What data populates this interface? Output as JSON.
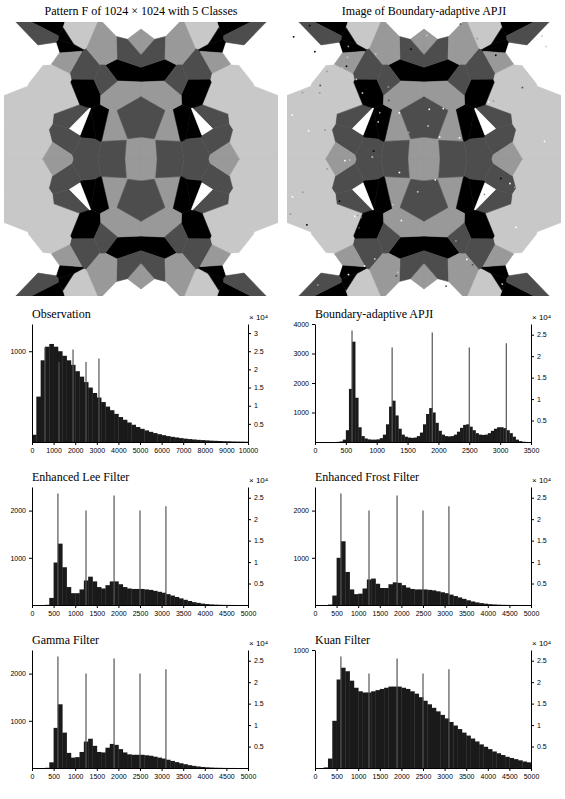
{
  "chart_data": [
    {
      "type": "image",
      "title": "Pattern F of 1024 × 1024 with 5 Classes"
    },
    {
      "type": "image",
      "title": "Image of Boundary-adaptive APJI"
    },
    {
      "type": "histogram",
      "title": "Observation",
      "color": "#1a1a1a",
      "bins": [
        0,
        200,
        400,
        600,
        800,
        1000,
        1200,
        1400,
        1600,
        1800,
        2000,
        2200,
        2400,
        2600,
        2800,
        3000,
        3200,
        3400,
        3600,
        3800,
        4000,
        4200,
        4400,
        4600,
        4800,
        5000,
        5200,
        5400,
        5600,
        5800,
        6000,
        6200,
        6400,
        6600,
        6800,
        7000,
        7200,
        7400,
        7600,
        7800,
        8000,
        8200,
        8400,
        8600,
        8800,
        9000,
        9200,
        9400,
        9600,
        9800,
        10000
      ],
      "counts": [
        80,
        500,
        900,
        1050,
        1080,
        1050,
        1000,
        950,
        900,
        850,
        780,
        720,
        660,
        600,
        540,
        490,
        440,
        390,
        350,
        310,
        275,
        245,
        215,
        190,
        165,
        145,
        128,
        112,
        98,
        86,
        75,
        65,
        57,
        50,
        43,
        37,
        32,
        28,
        24,
        21,
        18,
        15,
        13,
        11,
        9,
        8,
        6,
        5,
        4,
        3
      ],
      "xlim": [
        0,
        10000
      ],
      "xticks": [
        0,
        1000,
        2000,
        3000,
        4000,
        5000,
        6000,
        7000,
        8000,
        9000,
        10000
      ],
      "ylim": [
        0,
        1300
      ],
      "yticks": [
        1000
      ],
      "y2lim": [
        0,
        3.25
      ],
      "y2ticks": [
        0.5,
        1,
        1.5,
        2,
        2.5,
        3
      ],
      "y2_label": "× 10⁴",
      "series": [
        {
          "type": "stem",
          "axis": "y2",
          "color": "#555555",
          "x": [
            600,
            1250,
            1900,
            2500,
            3100
          ],
          "values": [
            2.6,
            2.2,
            2.55,
            2.2,
            2.3
          ]
        }
      ]
    },
    {
      "type": "histogram",
      "title": "Boundary-adaptive APJI",
      "color": "#1a1a1a",
      "bins": [
        0,
        50,
        100,
        150,
        200,
        250,
        300,
        350,
        400,
        450,
        500,
        550,
        600,
        650,
        700,
        750,
        800,
        850,
        900,
        950,
        1000,
        1050,
        1100,
        1150,
        1200,
        1250,
        1300,
        1350,
        1400,
        1450,
        1500,
        1550,
        1600,
        1650,
        1700,
        1750,
        1800,
        1850,
        1900,
        1950,
        2000,
        2050,
        2100,
        2150,
        2200,
        2250,
        2300,
        2350,
        2400,
        2450,
        2500,
        2550,
        2600,
        2650,
        2700,
        2750,
        2800,
        2850,
        2900,
        2950,
        3000,
        3050,
        3100,
        3150,
        3200,
        3250,
        3300,
        3350,
        3400,
        3450,
        3500
      ],
      "counts": [
        0,
        0,
        0,
        0,
        0,
        0,
        0,
        5,
        20,
        80,
        400,
        1800,
        3400,
        1500,
        500,
        200,
        120,
        90,
        80,
        80,
        90,
        130,
        250,
        600,
        1200,
        1400,
        900,
        450,
        250,
        180,
        150,
        140,
        150,
        200,
        320,
        600,
        950,
        1150,
        1000,
        650,
        380,
        250,
        200,
        190,
        200,
        250,
        350,
        480,
        580,
        600,
        520,
        400,
        300,
        250,
        240,
        250,
        300,
        380,
        450,
        500,
        500,
        470,
        400,
        300,
        180,
        80,
        30,
        10,
        3,
        0
      ],
      "xlim": [
        0,
        3500
      ],
      "xticks": [
        0,
        500,
        1000,
        1500,
        2000,
        2500,
        3000,
        3500
      ],
      "ylim": [
        0,
        4000
      ],
      "yticks": [
        1000,
        2000,
        3000,
        4000
      ],
      "y2lim": [
        0,
        2.75
      ],
      "y2ticks": [
        0.5,
        1,
        1.5,
        2,
        2.5
      ],
      "y2_label": "× 10⁴",
      "series": [
        {
          "type": "stem",
          "axis": "y2",
          "color": "#555555",
          "x": [
            600,
            1250,
            1900,
            2500,
            3100
          ],
          "values": [
            2.6,
            2.2,
            2.55,
            2.2,
            2.3
          ]
        }
      ]
    },
    {
      "type": "histogram",
      "title": "Enhanced Lee Filter",
      "color": "#1a1a1a",
      "bins": [
        0,
        100,
        200,
        300,
        400,
        500,
        600,
        700,
        800,
        900,
        1000,
        1100,
        1200,
        1300,
        1400,
        1500,
        1600,
        1700,
        1800,
        1900,
        2000,
        2100,
        2200,
        2300,
        2400,
        2500,
        2600,
        2700,
        2800,
        2900,
        3000,
        3100,
        3200,
        3300,
        3400,
        3500,
        3600,
        3700,
        3800,
        3900,
        4000,
        4100,
        4200,
        4300,
        4400,
        4500,
        4600,
        4700,
        4800,
        4900,
        5000
      ],
      "counts": [
        0,
        0,
        0,
        5,
        150,
        900,
        1300,
        800,
        380,
        250,
        250,
        330,
        520,
        600,
        500,
        380,
        350,
        420,
        500,
        500,
        440,
        380,
        350,
        340,
        340,
        340,
        330,
        320,
        300,
        280,
        260,
        230,
        200,
        170,
        140,
        110,
        85,
        60,
        45,
        30,
        20,
        13,
        8,
        5,
        3,
        2,
        1,
        0,
        0,
        0
      ],
      "xlim": [
        0,
        5000
      ],
      "xticks": [
        0,
        500,
        1000,
        1500,
        2000,
        2500,
        3000,
        3500,
        4000,
        4500,
        5000
      ],
      "ylim": [
        0,
        2500
      ],
      "yticks": [
        1000,
        2000
      ],
      "y2lim": [
        0,
        2.75
      ],
      "y2ticks": [
        0.5,
        1,
        1.5,
        2,
        2.5
      ],
      "y2_label": "× 10⁴",
      "series": [
        {
          "type": "stem",
          "axis": "y2",
          "color": "#555555",
          "x": [
            600,
            1250,
            1900,
            2500,
            3100
          ],
          "values": [
            2.6,
            2.2,
            2.55,
            2.2,
            2.3
          ]
        }
      ]
    },
    {
      "type": "histogram",
      "title": "Enhanced Frost Filter",
      "color": "#1a1a1a",
      "bins": [
        0,
        100,
        200,
        300,
        400,
        500,
        600,
        700,
        800,
        900,
        1000,
        1100,
        1200,
        1300,
        1400,
        1500,
        1600,
        1700,
        1800,
        1900,
        2000,
        2100,
        2200,
        2300,
        2400,
        2500,
        2600,
        2700,
        2800,
        2900,
        3000,
        3100,
        3200,
        3300,
        3400,
        3500,
        3600,
        3700,
        3800,
        3900,
        4000,
        4100,
        4200,
        4300,
        4400,
        4500,
        4600,
        4700,
        4800,
        4900,
        5000
      ],
      "counts": [
        0,
        0,
        0,
        10,
        200,
        1000,
        1350,
        700,
        330,
        230,
        240,
        350,
        540,
        560,
        450,
        360,
        360,
        440,
        480,
        470,
        420,
        370,
        340,
        330,
        330,
        330,
        320,
        310,
        290,
        270,
        250,
        220,
        190,
        160,
        130,
        100,
        75,
        55,
        40,
        28,
        18,
        12,
        7,
        4,
        2,
        1,
        1,
        0,
        0,
        0
      ],
      "xlim": [
        0,
        5000
      ],
      "xticks": [
        0,
        500,
        1000,
        1500,
        2000,
        2500,
        3000,
        3500,
        4000,
        4500,
        5000
      ],
      "ylim": [
        0,
        2500
      ],
      "yticks": [
        1000,
        2000
      ],
      "y2lim": [
        0,
        2.75
      ],
      "y2ticks": [
        0.5,
        1,
        1.5,
        2,
        2.5
      ],
      "y2_label": "× 10⁴",
      "series": [
        {
          "type": "stem",
          "axis": "y2",
          "color": "#555555",
          "x": [
            600,
            1250,
            1900,
            2500,
            3100
          ],
          "values": [
            2.6,
            2.2,
            2.55,
            2.2,
            2.3
          ]
        }
      ]
    },
    {
      "type": "histogram",
      "title": "Gamma Filter",
      "color": "#1a1a1a",
      "bins": [
        0,
        100,
        200,
        300,
        400,
        500,
        600,
        700,
        800,
        900,
        1000,
        1100,
        1200,
        1300,
        1400,
        1500,
        1600,
        1700,
        1800,
        1900,
        2000,
        2100,
        2200,
        2300,
        2400,
        2500,
        2600,
        2700,
        2800,
        2900,
        3000,
        3100,
        3200,
        3300,
        3400,
        3500,
        3600,
        3700,
        3800,
        3900,
        4000,
        4100,
        4200,
        4300,
        4400,
        4500,
        4600,
        4700,
        4800,
        4900,
        5000
      ],
      "counts": [
        0,
        0,
        0,
        5,
        120,
        850,
        1350,
        750,
        320,
        220,
        230,
        340,
        560,
        620,
        470,
        340,
        330,
        430,
        510,
        490,
        400,
        330,
        290,
        280,
        280,
        280,
        270,
        260,
        240,
        220,
        200,
        175,
        150,
        125,
        100,
        80,
        60,
        45,
        32,
        22,
        15,
        10,
        6,
        4,
        2,
        1,
        1,
        0,
        0,
        0
      ],
      "xlim": [
        0,
        5000
      ],
      "xticks": [
        0,
        500,
        1000,
        1500,
        2000,
        2500,
        3000,
        3500,
        4000,
        4500,
        5000
      ],
      "ylim": [
        0,
        2500
      ],
      "yticks": [
        1000,
        2000
      ],
      "y2lim": [
        0,
        2.75
      ],
      "y2ticks": [
        0.5,
        1,
        1.5,
        2,
        2.5
      ],
      "y2_label": "× 10⁴",
      "series": [
        {
          "type": "stem",
          "axis": "y2",
          "color": "#555555",
          "x": [
            600,
            1250,
            1900,
            2500,
            3100
          ],
          "values": [
            2.6,
            2.2,
            2.55,
            2.2,
            2.3
          ]
        }
      ]
    },
    {
      "type": "histogram",
      "title": "Kuan Filter",
      "color": "#1a1a1a",
      "bins": [
        0,
        100,
        200,
        300,
        400,
        500,
        600,
        700,
        800,
        900,
        1000,
        1100,
        1200,
        1300,
        1400,
        1500,
        1600,
        1700,
        1800,
        1900,
        2000,
        2100,
        2200,
        2300,
        2400,
        2500,
        2600,
        2700,
        2800,
        2900,
        3000,
        3100,
        3200,
        3300,
        3400,
        3500,
        3600,
        3700,
        3800,
        3900,
        4000,
        4100,
        4200,
        4300,
        4400,
        4500,
        4600,
        4700,
        4800,
        4900,
        5000
      ],
      "counts": [
        0,
        0,
        5,
        80,
        400,
        750,
        850,
        820,
        740,
        680,
        650,
        640,
        640,
        650,
        660,
        670,
        680,
        690,
        690,
        690,
        680,
        670,
        650,
        630,
        600,
        570,
        540,
        510,
        480,
        450,
        420,
        390,
        360,
        330,
        300,
        275,
        250,
        225,
        200,
        180,
        160,
        140,
        125,
        110,
        95,
        85,
        75,
        65,
        55,
        48
      ],
      "xlim": [
        0,
        5000
      ],
      "xticks": [
        0,
        500,
        1000,
        1500,
        2000,
        2500,
        3000,
        3500,
        4000,
        4500,
        5000
      ],
      "ylim": [
        0,
        1000
      ],
      "yticks": [
        1000
      ],
      "y2lim": [
        0,
        2.75
      ],
      "y2ticks": [
        0.5,
        1,
        1.5,
        2,
        2.5
      ],
      "y2_label": "× 10⁴",
      "series": [
        {
          "type": "stem",
          "axis": "y2",
          "color": "#555555",
          "x": [
            600,
            1250,
            1900,
            2500,
            3100
          ],
          "values": [
            2.6,
            2.2,
            2.55,
            2.2,
            2.3
          ]
        }
      ]
    }
  ]
}
